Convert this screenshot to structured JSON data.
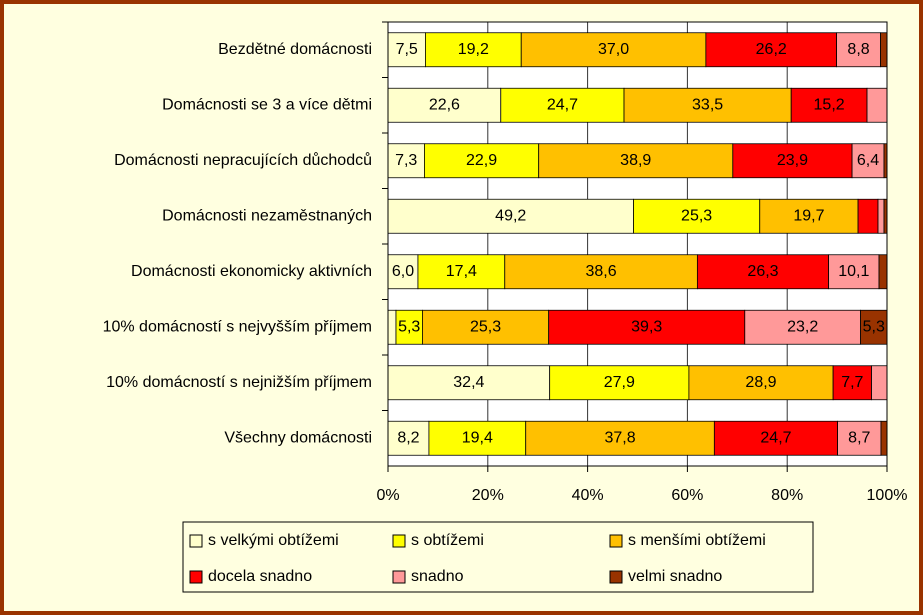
{
  "chart_data": {
    "type": "stacked_barh",
    "categories": [
      "Bezdětné domácnosti",
      "Domácnosti se 3 a více dětmi",
      "Domácnosti nepracujících důchodců",
      "Domácnosti nezaměstnaných",
      "Domácnosti ekonomicky aktivních",
      "10% domácností s nejvyšším příjmem",
      "10% domácností s nejnižším příjmem",
      "Všechny domácnosti"
    ],
    "series": [
      {
        "name": "s velkými obtížemi",
        "color": "#FFFFCC",
        "values": [
          7.5,
          22.6,
          7.3,
          49.2,
          6.0,
          1.6,
          32.4,
          8.2
        ],
        "value_labels": [
          "7,5",
          "22,6",
          "7,3",
          "49,2",
          "6,0",
          null,
          "32,4",
          "8,2"
        ]
      },
      {
        "name": "s obtížemi",
        "color": "#FFFF00",
        "values": [
          19.2,
          24.7,
          22.9,
          25.3,
          17.4,
          5.3,
          27.9,
          19.4
        ],
        "value_labels": [
          "19,2",
          "24,7",
          "22,9",
          "25,3",
          "17,4",
          "5,3",
          "27,9",
          "19,4"
        ]
      },
      {
        "name": "s menšími obtížemi",
        "color": "#FFC000",
        "values": [
          37.0,
          33.5,
          38.9,
          19.7,
          38.6,
          25.3,
          28.9,
          37.8
        ],
        "value_labels": [
          "37,0",
          "33,5",
          "38,9",
          "19,7",
          "38,6",
          "25,3",
          "28,9",
          "37,8"
        ]
      },
      {
        "name": "docela snadno",
        "color": "#FF0000",
        "values": [
          26.2,
          15.2,
          23.9,
          4.0,
          26.3,
          39.3,
          7.7,
          24.7
        ],
        "value_labels": [
          "26,2",
          "15,2",
          "23,9",
          null,
          "26,3",
          "39,3",
          "7,7",
          "24,7"
        ]
      },
      {
        "name": "snadno",
        "color": "#FF9999",
        "values": [
          8.8,
          4.0,
          6.4,
          1.2,
          10.1,
          23.2,
          3.1,
          8.7
        ],
        "value_labels": [
          "8,8",
          null,
          "6,4",
          null,
          "10,1",
          "23,2",
          null,
          "8,7"
        ]
      },
      {
        "name": "velmi snadno",
        "color": "#993300",
        "values": [
          1.3,
          0,
          0.6,
          0.6,
          1.6,
          5.3,
          0,
          1.2
        ],
        "value_labels": [
          null,
          null,
          null,
          null,
          null,
          "5,3",
          null,
          null
        ]
      }
    ],
    "xlim": [
      0,
      100
    ],
    "xticks": [
      {
        "value": 0,
        "label": "0%"
      },
      {
        "value": 20,
        "label": "20%"
      },
      {
        "value": 40,
        "label": "40%"
      },
      {
        "value": 60,
        "label": "60%"
      },
      {
        "value": 80,
        "label": "80%"
      },
      {
        "value": 100,
        "label": "100%"
      }
    ],
    "grid": true
  }
}
